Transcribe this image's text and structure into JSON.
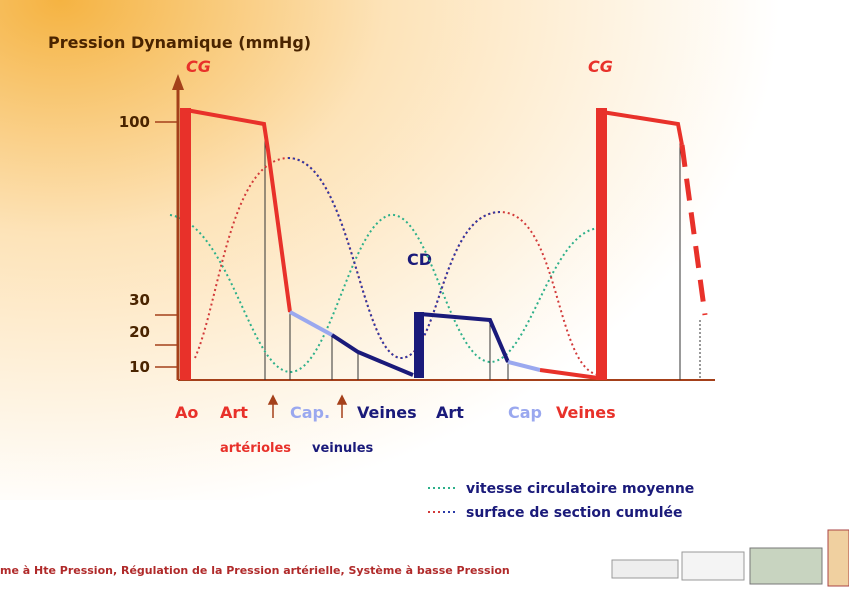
{
  "title": "Pression Dynamique (mmHg)",
  "markers": {
    "cg_left": "CG",
    "cg_right": "CG",
    "cd": "CD"
  },
  "y_ticks": [
    "100",
    "30",
    "20",
    "10"
  ],
  "x_labels": [
    "Ao",
    "Art",
    "Cap.",
    "Veines",
    "Art",
    "Cap",
    "Veines"
  ],
  "sub_labels": [
    "artérioles",
    "veinules"
  ],
  "legend": [
    {
      "text": "vitesse circulatoire moyenne"
    },
    {
      "text": "surface de section cumulée"
    }
  ],
  "footer": "me à Hte Pression, Régulation de la Pression artérielle, Système à basse Pression"
}
